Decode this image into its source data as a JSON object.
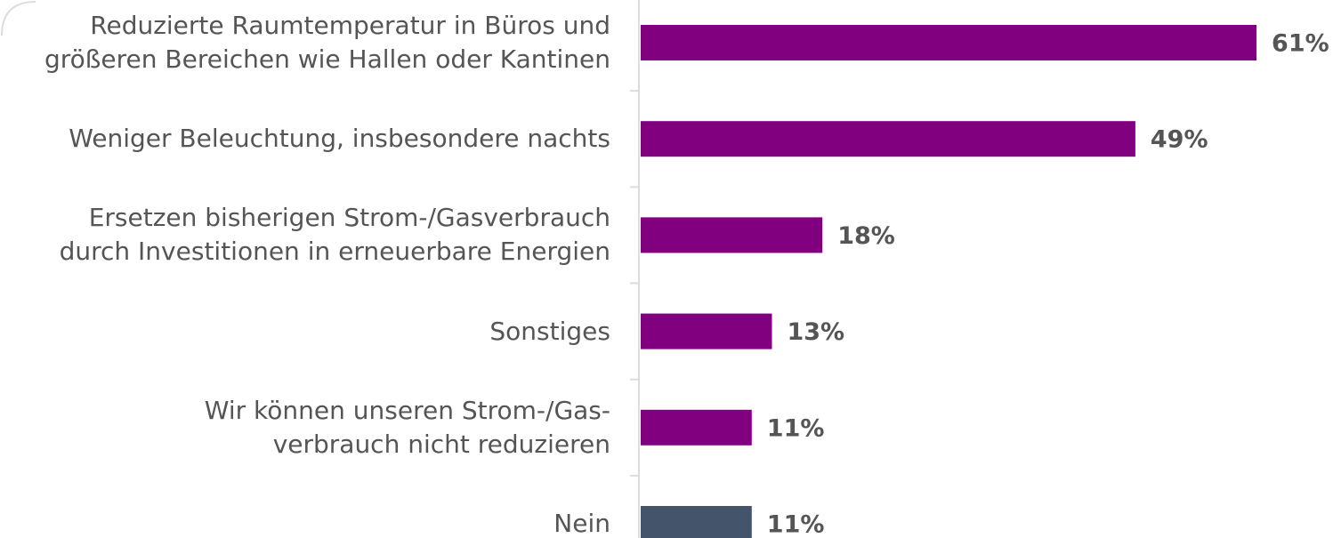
{
  "chart_data": {
    "type": "bar",
    "orientation": "horizontal",
    "categories": [
      "Reduzierte Raumtemperatur in Büros und\ngrößeren Bereichen wie Hallen oder Kantinen",
      "Weniger Beleuchtung, insbesondere nachts",
      "Ersetzen bisherigen Strom-/Gasverbrauch\ndurch Investitionen in erneuerbare Energien",
      "Sonstiges",
      "Wir können unseren Strom-/Gas-\nverbrauch nicht reduzieren",
      "Nein"
    ],
    "values": [
      61,
      49,
      18,
      13,
      11,
      11
    ],
    "value_labels": [
      "61%",
      "49%",
      "18%",
      "13%",
      "11%",
      "11%"
    ],
    "colors": [
      "#800080",
      "#800080",
      "#800080",
      "#800080",
      "#800080",
      "#44546a"
    ]
  }
}
